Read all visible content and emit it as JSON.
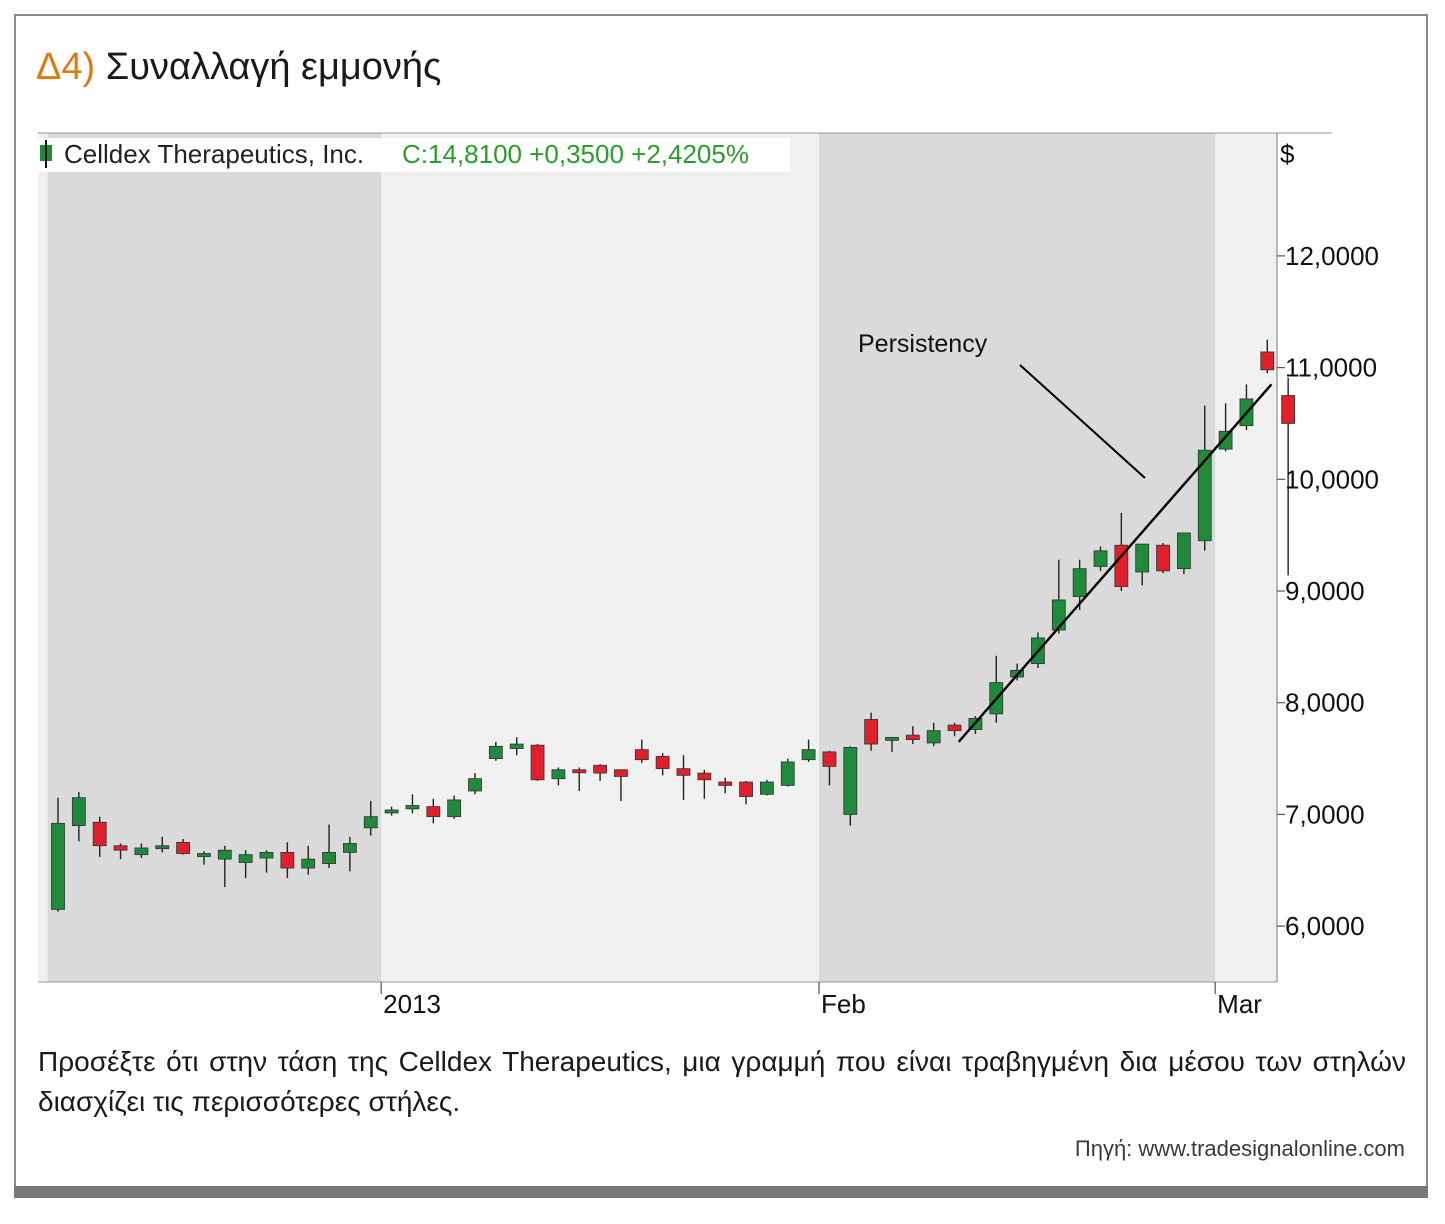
{
  "heading": {
    "number": "Δ4)",
    "title": "Συναλλαγή εμμονής"
  },
  "caption": "Προσέξτε ότι στην τάση της Celldex Therapeutics, μια γραμμή που είναι τραβηγμένη δια μέσου των στηλών διασχίζει τις περισσότερες στήλες.",
  "source": "Πηγή: www.tradesignalonline.com",
  "colors": {
    "up": "#1e8a3a",
    "down": "#e0202a",
    "band_dark": "#dadada",
    "band_light": "#f0f0f0",
    "accent": "#e07a10"
  },
  "chart_data": {
    "type": "candlestick",
    "title": "Celldex Therapeutics, Inc.",
    "last_quote": "C:14,8100 +0,3500 +2,4205%",
    "y_unit_label": "$",
    "ylim": [
      5.5,
      13.1
    ],
    "y_ticks": [
      "6,0000",
      "7,0000",
      "8,0000",
      "9,0000",
      "10,0000",
      "11,0000",
      "12,0000"
    ],
    "y_tick_values": [
      6,
      7,
      8,
      9,
      10,
      11,
      12
    ],
    "x_labels": [
      {
        "text": "2013",
        "index": 15.5
      },
      {
        "text": "Feb",
        "index": 36.5
      },
      {
        "text": "Mar",
        "index": 55.5
      }
    ],
    "shaded_ranges": [
      [
        -0.5,
        15.5
      ],
      [
        36.5,
        55.5
      ]
    ],
    "annotation": {
      "text": "Persistency"
    },
    "trendline": {
      "from": [
        43.2,
        7.65
      ],
      "to": [
        58.2,
        10.85
      ]
    },
    "candles": [
      {
        "o": 6.15,
        "h": 7.15,
        "l": 6.13,
        "c": 6.92
      },
      {
        "o": 6.9,
        "h": 7.2,
        "l": 6.76,
        "c": 7.15
      },
      {
        "o": 6.93,
        "h": 6.98,
        "l": 6.62,
        "c": 6.72
      },
      {
        "o": 6.72,
        "h": 6.74,
        "l": 6.6,
        "c": 6.68
      },
      {
        "o": 6.64,
        "h": 6.74,
        "l": 6.61,
        "c": 6.7
      },
      {
        "o": 6.7,
        "h": 6.8,
        "l": 6.66,
        "c": 6.72
      },
      {
        "o": 6.75,
        "h": 6.78,
        "l": 6.64,
        "c": 6.65
      },
      {
        "o": 6.65,
        "h": 6.67,
        "l": 6.55,
        "c": 6.65
      },
      {
        "o": 6.6,
        "h": 6.72,
        "l": 6.35,
        "c": 6.68
      },
      {
        "o": 6.57,
        "h": 6.68,
        "l": 6.43,
        "c": 6.64
      },
      {
        "o": 6.61,
        "h": 6.68,
        "l": 6.48,
        "c": 6.66
      },
      {
        "o": 6.66,
        "h": 6.75,
        "l": 6.43,
        "c": 6.52
      },
      {
        "o": 6.52,
        "h": 6.72,
        "l": 6.46,
        "c": 6.6
      },
      {
        "o": 6.56,
        "h": 6.91,
        "l": 6.52,
        "c": 6.66
      },
      {
        "o": 6.66,
        "h": 6.8,
        "l": 6.49,
        "c": 6.74
      },
      {
        "o": 6.88,
        "h": 7.12,
        "l": 6.81,
        "c": 6.98
      },
      {
        "o": 7.03,
        "h": 7.07,
        "l": 6.99,
        "c": 7.04
      },
      {
        "o": 7.05,
        "h": 7.18,
        "l": 7.01,
        "c": 7.08
      },
      {
        "o": 7.07,
        "h": 7.14,
        "l": 6.92,
        "c": 6.98
      },
      {
        "o": 6.98,
        "h": 7.17,
        "l": 6.96,
        "c": 7.13
      },
      {
        "o": 7.21,
        "h": 7.37,
        "l": 7.18,
        "c": 7.32
      },
      {
        "o": 7.5,
        "h": 7.65,
        "l": 7.48,
        "c": 7.61
      },
      {
        "o": 7.59,
        "h": 7.69,
        "l": 7.53,
        "c": 7.63
      },
      {
        "o": 7.62,
        "h": 7.63,
        "l": 7.3,
        "c": 7.31
      },
      {
        "o": 7.32,
        "h": 7.42,
        "l": 7.26,
        "c": 7.4
      },
      {
        "o": 7.4,
        "h": 7.42,
        "l": 7.21,
        "c": 7.38
      },
      {
        "o": 7.44,
        "h": 7.45,
        "l": 7.3,
        "c": 7.37
      },
      {
        "o": 7.4,
        "h": 7.38,
        "l": 7.12,
        "c": 7.34
      },
      {
        "o": 7.58,
        "h": 7.67,
        "l": 7.46,
        "c": 7.49
      },
      {
        "o": 7.52,
        "h": 7.55,
        "l": 7.35,
        "c": 7.41
      },
      {
        "o": 7.41,
        "h": 7.53,
        "l": 7.13,
        "c": 7.35
      },
      {
        "o": 7.37,
        "h": 7.4,
        "l": 7.14,
        "c": 7.31
      },
      {
        "o": 7.29,
        "h": 7.33,
        "l": 7.19,
        "c": 7.26
      },
      {
        "o": 7.29,
        "h": 7.3,
        "l": 7.09,
        "c": 7.16
      },
      {
        "o": 7.18,
        "h": 7.31,
        "l": 7.17,
        "c": 7.29
      },
      {
        "o": 7.26,
        "h": 7.5,
        "l": 7.25,
        "c": 7.47
      },
      {
        "o": 7.49,
        "h": 7.67,
        "l": 7.47,
        "c": 7.58
      },
      {
        "o": 7.56,
        "h": 7.57,
        "l": 7.26,
        "c": 7.43
      },
      {
        "o": 7.0,
        "h": 7.61,
        "l": 6.9,
        "c": 7.6
      },
      {
        "o": 7.85,
        "h": 7.91,
        "l": 7.57,
        "c": 7.63
      },
      {
        "o": 7.67,
        "h": 7.69,
        "l": 7.56,
        "c": 7.69
      },
      {
        "o": 7.71,
        "h": 7.79,
        "l": 7.63,
        "c": 7.67
      },
      {
        "o": 7.64,
        "h": 7.82,
        "l": 7.61,
        "c": 7.75
      },
      {
        "o": 7.8,
        "h": 7.82,
        "l": 7.7,
        "c": 7.75
      },
      {
        "o": 7.76,
        "h": 7.88,
        "l": 7.72,
        "c": 7.86
      },
      {
        "o": 7.9,
        "h": 8.42,
        "l": 7.82,
        "c": 8.18
      },
      {
        "o": 8.23,
        "h": 8.35,
        "l": 8.2,
        "c": 8.29
      },
      {
        "o": 8.35,
        "h": 8.63,
        "l": 8.31,
        "c": 8.58
      },
      {
        "o": 8.65,
        "h": 9.28,
        "l": 8.62,
        "c": 8.92
      },
      {
        "o": 8.95,
        "h": 9.28,
        "l": 8.83,
        "c": 9.2
      },
      {
        "o": 9.22,
        "h": 9.4,
        "l": 9.18,
        "c": 9.36
      },
      {
        "o": 9.41,
        "h": 9.7,
        "l": 9.0,
        "c": 9.04
      },
      {
        "o": 9.17,
        "h": 9.42,
        "l": 9.05,
        "c": 9.42
      },
      {
        "o": 9.41,
        "h": 9.43,
        "l": 9.16,
        "c": 9.18
      },
      {
        "o": 9.2,
        "h": 9.52,
        "l": 9.15,
        "c": 9.52
      },
      {
        "o": 9.45,
        "h": 10.66,
        "l": 9.36,
        "c": 10.26
      },
      {
        "o": 10.27,
        "h": 10.68,
        "l": 10.25,
        "c": 10.43
      },
      {
        "o": 10.48,
        "h": 10.85,
        "l": 10.44,
        "c": 10.72
      },
      {
        "o": 11.14,
        "h": 11.25,
        "l": 10.95,
        "c": 10.98
      },
      {
        "o": 10.75,
        "h": 10.91,
        "l": 9.14,
        "c": 10.5
      }
    ]
  }
}
